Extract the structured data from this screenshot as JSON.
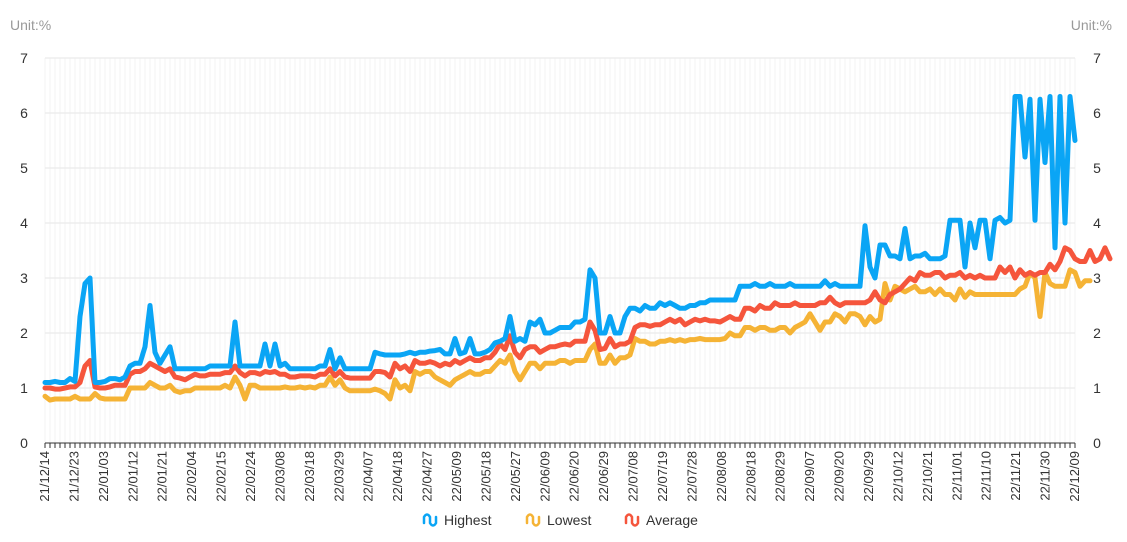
{
  "chart_data": {
    "type": "line",
    "unit_left": "Unit:%",
    "unit_right": "Unit:%",
    "ylim": [
      0,
      7
    ],
    "yticks": [
      0,
      1,
      2,
      3,
      4,
      5,
      6,
      7
    ],
    "grid": true,
    "legend_position": "bottom-center",
    "x_tick_labels": [
      "21/12/14",
      "21/12/23",
      "22/01/03",
      "22/01/12",
      "22/01/21",
      "22/02/04",
      "22/02/15",
      "22/02/24",
      "22/03/08",
      "22/03/18",
      "22/03/29",
      "22/04/07",
      "22/04/18",
      "22/04/27",
      "22/05/09",
      "22/05/18",
      "22/05/27",
      "22/06/09",
      "22/06/20",
      "22/06/29",
      "22/07/08",
      "22/07/19",
      "22/07/28",
      "22/08/08",
      "22/08/18",
      "22/08/29",
      "22/09/07",
      "22/09/20",
      "22/09/29",
      "22/10/12",
      "22/10/21",
      "22/11/01",
      "22/11/10",
      "22/11/21",
      "22/11/30",
      "22/12/09"
    ],
    "series": [
      {
        "name": "Highest",
        "color": "#0aa5f5",
        "values": [
          1.1,
          1.1,
          1.12,
          1.1,
          1.1,
          1.17,
          1.12,
          2.3,
          2.9,
          3.0,
          1.1,
          1.1,
          1.12,
          1.17,
          1.17,
          1.15,
          1.2,
          1.4,
          1.45,
          1.45,
          1.75,
          2.5,
          1.65,
          1.45,
          1.6,
          1.75,
          1.35,
          1.35,
          1.35,
          1.35,
          1.35,
          1.35,
          1.35,
          1.4,
          1.4,
          1.4,
          1.4,
          1.4,
          2.2,
          1.4,
          1.4,
          1.4,
          1.4,
          1.4,
          1.8,
          1.4,
          1.8,
          1.4,
          1.45,
          1.35,
          1.35,
          1.35,
          1.35,
          1.35,
          1.35,
          1.4,
          1.4,
          1.7,
          1.35,
          1.55,
          1.35,
          1.35,
          1.35,
          1.35,
          1.35,
          1.35,
          1.65,
          1.62,
          1.6,
          1.6,
          1.6,
          1.6,
          1.62,
          1.65,
          1.62,
          1.65,
          1.65,
          1.67,
          1.68,
          1.7,
          1.62,
          1.62,
          1.9,
          1.62,
          1.65,
          1.9,
          1.62,
          1.62,
          1.65,
          1.7,
          1.82,
          1.85,
          1.9,
          2.3,
          1.85,
          1.9,
          1.85,
          2.2,
          2.15,
          2.25,
          2.0,
          2.0,
          2.05,
          2.1,
          2.1,
          2.1,
          2.2,
          2.2,
          2.25,
          3.15,
          3.0,
          2.0,
          2.0,
          2.3,
          2.0,
          2.0,
          2.3,
          2.45,
          2.45,
          2.4,
          2.5,
          2.45,
          2.45,
          2.55,
          2.5,
          2.55,
          2.5,
          2.45,
          2.45,
          2.5,
          2.5,
          2.55,
          2.55,
          2.6,
          2.6,
          2.6,
          2.6,
          2.6,
          2.6,
          2.85,
          2.85,
          2.85,
          2.9,
          2.85,
          2.85,
          2.9,
          2.85,
          2.85,
          2.85,
          2.9,
          2.85,
          2.85,
          2.85,
          2.85,
          2.85,
          2.85,
          2.95,
          2.85,
          2.9,
          2.85,
          2.85,
          2.85,
          2.85,
          2.85,
          3.95,
          3.2,
          3.0,
          3.6,
          3.6,
          3.4,
          3.4,
          3.35,
          3.9,
          3.35,
          3.4,
          3.4,
          3.45,
          3.35,
          3.35,
          3.35,
          3.4,
          4.05,
          4.05,
          4.05,
          3.2,
          4.0,
          3.55,
          4.05,
          4.05,
          3.35,
          4.05,
          4.1,
          4.0,
          4.05,
          6.3,
          6.3,
          5.2,
          6.25,
          4.05,
          6.25,
          5.1,
          6.3,
          3.55,
          6.3,
          4.0,
          6.3,
          5.5
        ]
      },
      {
        "name": "Lowest",
        "color": "#f5b335",
        "values": [
          0.85,
          0.78,
          0.8,
          0.8,
          0.8,
          0.8,
          0.85,
          0.8,
          0.8,
          0.8,
          0.9,
          0.82,
          0.8,
          0.8,
          0.8,
          0.8,
          0.8,
          1.0,
          1.0,
          1.0,
          1.0,
          1.1,
          1.05,
          1.0,
          1.0,
          1.05,
          0.95,
          0.92,
          0.95,
          0.95,
          1.0,
          1.0,
          1.0,
          1.0,
          1.0,
          1.0,
          1.05,
          1.0,
          1.2,
          1.05,
          0.8,
          1.05,
          1.05,
          1.0,
          1.0,
          1.0,
          1.0,
          1.0,
          1.02,
          1.0,
          1.0,
          1.02,
          1.0,
          1.02,
          1.0,
          1.05,
          1.05,
          1.2,
          1.05,
          1.15,
          1.0,
          0.95,
          0.95,
          0.95,
          0.95,
          0.95,
          0.98,
          0.95,
          0.9,
          0.8,
          1.15,
          1.0,
          1.05,
          0.95,
          1.3,
          1.25,
          1.3,
          1.3,
          1.2,
          1.15,
          1.1,
          1.05,
          1.15,
          1.2,
          1.25,
          1.3,
          1.25,
          1.25,
          1.3,
          1.3,
          1.4,
          1.5,
          1.45,
          1.6,
          1.3,
          1.15,
          1.3,
          1.45,
          1.45,
          1.35,
          1.45,
          1.45,
          1.45,
          1.5,
          1.5,
          1.45,
          1.5,
          1.5,
          1.5,
          1.7,
          1.8,
          1.45,
          1.45,
          1.6,
          1.45,
          1.55,
          1.55,
          1.6,
          1.9,
          1.85,
          1.85,
          1.8,
          1.8,
          1.85,
          1.85,
          1.88,
          1.85,
          1.88,
          1.85,
          1.88,
          1.88,
          1.9,
          1.88,
          1.88,
          1.88,
          1.88,
          1.9,
          2.0,
          1.95,
          1.95,
          2.1,
          2.1,
          2.05,
          2.1,
          2.1,
          2.05,
          2.05,
          2.1,
          2.1,
          2.0,
          2.1,
          2.15,
          2.2,
          2.35,
          2.2,
          2.05,
          2.2,
          2.2,
          2.35,
          2.3,
          2.2,
          2.35,
          2.35,
          2.3,
          2.15,
          2.3,
          2.2,
          2.25,
          2.9,
          2.6,
          2.85,
          2.8,
          2.75,
          2.8,
          2.85,
          2.75,
          2.75,
          2.8,
          2.7,
          2.8,
          2.7,
          2.7,
          2.6,
          2.8,
          2.65,
          2.75,
          2.7,
          2.7,
          2.7,
          2.7,
          2.7,
          2.7,
          2.7,
          2.7,
          2.7,
          2.8,
          2.85,
          3.1,
          3.0,
          2.3,
          3.1,
          2.9,
          2.85,
          2.85,
          2.85,
          3.15,
          3.1,
          2.85,
          2.95,
          2.95
        ]
      },
      {
        "name": "Average",
        "color": "#f5553c",
        "values": [
          1.0,
          1.0,
          0.98,
          0.98,
          1.0,
          1.02,
          1.02,
          1.1,
          1.4,
          1.5,
          1.02,
          1.0,
          1.0,
          1.02,
          1.05,
          1.05,
          1.05,
          1.25,
          1.3,
          1.3,
          1.35,
          1.45,
          1.4,
          1.35,
          1.3,
          1.35,
          1.2,
          1.18,
          1.15,
          1.2,
          1.25,
          1.22,
          1.22,
          1.25,
          1.25,
          1.25,
          1.28,
          1.28,
          1.4,
          1.28,
          1.22,
          1.28,
          1.28,
          1.25,
          1.3,
          1.28,
          1.3,
          1.25,
          1.25,
          1.2,
          1.2,
          1.22,
          1.22,
          1.22,
          1.2,
          1.25,
          1.25,
          1.35,
          1.22,
          1.3,
          1.2,
          1.18,
          1.18,
          1.18,
          1.18,
          1.18,
          1.3,
          1.3,
          1.28,
          1.2,
          1.45,
          1.35,
          1.4,
          1.3,
          1.5,
          1.45,
          1.45,
          1.48,
          1.45,
          1.4,
          1.45,
          1.42,
          1.5,
          1.45,
          1.5,
          1.55,
          1.5,
          1.5,
          1.55,
          1.55,
          1.65,
          1.8,
          1.7,
          1.95,
          1.65,
          1.55,
          1.7,
          1.75,
          1.75,
          1.65,
          1.7,
          1.75,
          1.75,
          1.78,
          1.8,
          1.78,
          1.85,
          1.85,
          1.85,
          2.2,
          2.05,
          1.7,
          1.72,
          1.9,
          1.75,
          1.8,
          1.8,
          1.85,
          2.1,
          2.15,
          2.15,
          2.12,
          2.15,
          2.15,
          2.2,
          2.25,
          2.2,
          2.25,
          2.15,
          2.2,
          2.25,
          2.22,
          2.25,
          2.22,
          2.22,
          2.2,
          2.25,
          2.3,
          2.25,
          2.25,
          2.45,
          2.45,
          2.4,
          2.5,
          2.45,
          2.45,
          2.55,
          2.5,
          2.5,
          2.5,
          2.55,
          2.5,
          2.5,
          2.5,
          2.5,
          2.55,
          2.55,
          2.65,
          2.55,
          2.5,
          2.55,
          2.55,
          2.55,
          2.55,
          2.55,
          2.6,
          2.75,
          2.6,
          2.55,
          2.7,
          2.75,
          2.8,
          2.9,
          3.0,
          2.95,
          3.1,
          3.05,
          3.05,
          3.1,
          3.1,
          3.0,
          3.05,
          3.05,
          3.1,
          3.0,
          3.05,
          3.0,
          3.05,
          3.0,
          3.0,
          3.0,
          3.2,
          3.1,
          3.2,
          3.0,
          3.15,
          3.05,
          3.1,
          3.05,
          3.1,
          3.1,
          3.25,
          3.15,
          3.3,
          3.55,
          3.5,
          3.35,
          3.3,
          3.3,
          3.5,
          3.3,
          3.35,
          3.55,
          3.35
        ]
      }
    ]
  }
}
